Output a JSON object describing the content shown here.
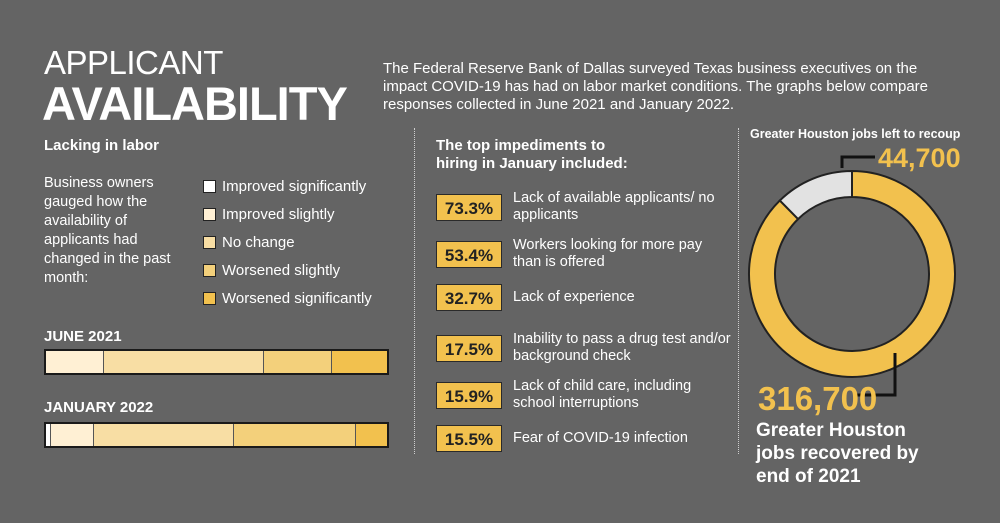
{
  "title": {
    "line1": "APPLICANT",
    "line2": "AVAILABILITY"
  },
  "intro": "The Federal Reserve Bank of Dallas surveyed Texas business executives on the impact COVID-19 has had on labor market conditions. The graphs below compare responses collected in June 2021 and January 2022.",
  "left": {
    "heading": "Lacking in labor",
    "note": "Business owners gauged how the availability of applicants had changed in the past month:",
    "legend": [
      {
        "label": "Improved significantly",
        "color": "#ffffff"
      },
      {
        "label": "Improved slightly",
        "color": "#fff0d4"
      },
      {
        "label": "No change",
        "color": "#f8dea4"
      },
      {
        "label": "Worsened slightly",
        "color": "#f3d07b"
      },
      {
        "label": "Worsened significantly",
        "color": "#f2c14e"
      }
    ]
  },
  "chart_data": [
    {
      "type": "bar",
      "stacked": true,
      "orientation": "horizontal",
      "categories": [
        "Improved significantly",
        "Improved slightly",
        "No change",
        "Worsened slightly",
        "Worsened significantly"
      ],
      "series": [
        {
          "name": "JUNE 2021",
          "values": [
            0,
            17,
            47,
            20,
            16
          ]
        },
        {
          "name": "JANUARY 2022",
          "values": [
            1.5,
            12.5,
            41,
            36,
            9
          ]
        }
      ],
      "unit": "%"
    },
    {
      "type": "pie",
      "donut": true,
      "title": "Greater Houston jobs left to recoup",
      "slices": [
        {
          "label": "Greater Houston jobs recovered by end of 2021",
          "value": 316700,
          "color": "#f2c14e"
        },
        {
          "label": "Greater Houston jobs left to recoup",
          "value": 44700,
          "color": "#e2e2e2"
        }
      ]
    }
  ],
  "impediments": {
    "heading_line1": "The top impediments to",
    "heading_line2": "hiring in January included:",
    "items": [
      {
        "pct": "73.3%",
        "text": "Lack of available applicants/ no applicants"
      },
      {
        "pct": "53.4%",
        "text": "Workers looking for more pay than is offered"
      },
      {
        "pct": "32.7%",
        "text": "Lack of experience"
      },
      {
        "pct": "17.5%",
        "text": "Inability to pass a drug test and/or background check"
      },
      {
        "pct": "15.9%",
        "text": "Lack of child care, including school interruptions"
      },
      {
        "pct": "15.5%",
        "text": "Fear of COVID-19 infection"
      }
    ]
  },
  "houston": {
    "top_label": "Greater Houston jobs left to recoup",
    "left_value": "44,700",
    "recovered_value": "316,700",
    "recovered_line1": "Greater Houston",
    "recovered_line2": "jobs recovered by",
    "recovered_line3": "end of 2021"
  }
}
